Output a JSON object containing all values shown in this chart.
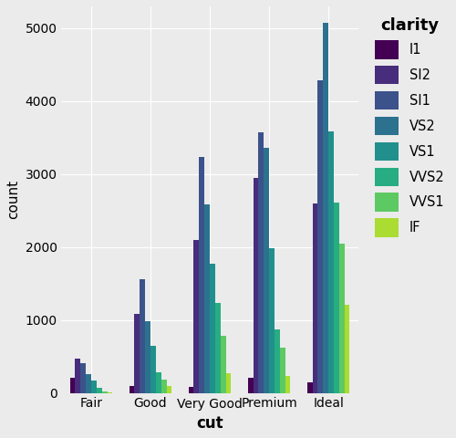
{
  "cuts": [
    "Fair",
    "Good",
    "Very Good",
    "Premium",
    "Ideal"
  ],
  "clarities": [
    "I1",
    "SI2",
    "SI1",
    "VS2",
    "VS1",
    "VVS2",
    "VVS1",
    "IF"
  ],
  "colors": [
    "#440154",
    "#472D7B",
    "#3B528B",
    "#2C728E",
    "#21908C",
    "#27AD81",
    "#5DC963",
    "#AADC32"
  ],
  "data": {
    "Fair": [
      210,
      466,
      408,
      261,
      170,
      69,
      17,
      9
    ],
    "Good": [
      96,
      1081,
      1560,
      978,
      648,
      286,
      186,
      96
    ],
    "Very Good": [
      84,
      2100,
      3240,
      2591,
      1775,
      1235,
      789,
      268
    ],
    "Premium": [
      205,
      2949,
      3575,
      3357,
      1989,
      870,
      616,
      230
    ],
    "Ideal": [
      146,
      2598,
      4282,
      5071,
      3589,
      2606,
      2047,
      1212
    ]
  },
  "xlabel": "cut",
  "ylabel": "count",
  "legend_title": "clarity",
  "ylim": [
    0,
    5300
  ],
  "yticks": [
    0,
    1000,
    2000,
    3000,
    4000,
    5000
  ],
  "bg_color": "#EBEBEB",
  "grid_color": "#FFFFFF",
  "if_color": "#FDE725"
}
